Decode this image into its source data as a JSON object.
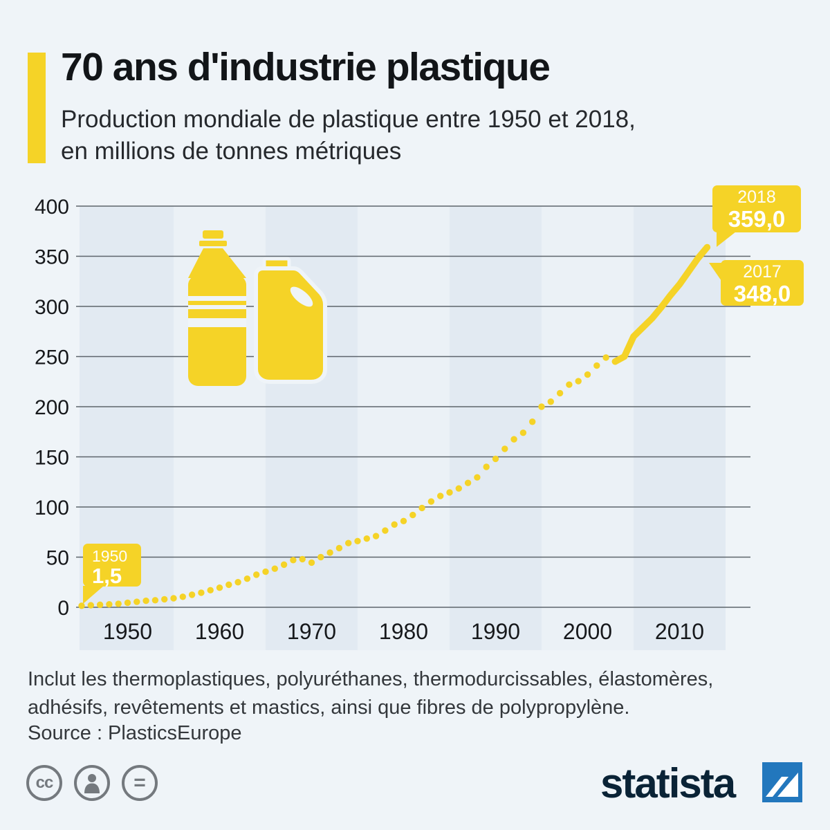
{
  "page": {
    "background": "#EFF4F8",
    "accent": "#F5D327",
    "logo_blue": "#2277BD"
  },
  "header": {
    "title": "70 ans d'industrie plastique",
    "subtitle_line1": "Production mondiale de plastique entre 1950 et 2018,",
    "subtitle_line2": "en millions de tonnes métriques"
  },
  "chart_data": {
    "type": "line",
    "title": "70 ans d'industrie plastique",
    "subtitle": "Production mondiale de plastique entre 1950 et 2018, en millions de tonnes métriques",
    "unit": "millions de tonnes métriques",
    "xlabel": "",
    "ylabel": "",
    "ylim": [
      0,
      400
    ],
    "yticks": [
      0,
      50,
      100,
      150,
      200,
      250,
      300,
      350,
      400
    ],
    "xticks": [
      1950,
      1960,
      1970,
      1980,
      1990,
      2000,
      2010
    ],
    "grid": true,
    "style": {
      "dotted_through_year": 2008,
      "solid_from_year": 2008,
      "decade_bands": true
    },
    "years": [
      1950,
      1951,
      1952,
      1953,
      1954,
      1955,
      1956,
      1957,
      1958,
      1959,
      1960,
      1961,
      1962,
      1963,
      1964,
      1965,
      1966,
      1967,
      1968,
      1969,
      1970,
      1971,
      1972,
      1973,
      1974,
      1975,
      1976,
      1977,
      1978,
      1979,
      1980,
      1981,
      1982,
      1983,
      1984,
      1985,
      1986,
      1987,
      1988,
      1989,
      1990,
      1991,
      1992,
      1993,
      1994,
      1995,
      1996,
      1997,
      1998,
      1999,
      2000,
      2001,
      2002,
      2003,
      2004,
      2005,
      2006,
      2007,
      2008,
      2009,
      2010,
      2011,
      2012,
      2013,
      2014,
      2015,
      2016,
      2017,
      2018
    ],
    "values": [
      1.5,
      2,
      2.5,
      3,
      3.5,
      4.5,
      5.5,
      6.5,
      7,
      8,
      9,
      10.5,
      12.5,
      14.5,
      17,
      19.5,
      22.5,
      25,
      28.5,
      32.5,
      35.5,
      38.5,
      42.5,
      47,
      48,
      44.5,
      50,
      54.5,
      59,
      64,
      66,
      68.5,
      71,
      76.5,
      82.5,
      86,
      92,
      99,
      105.5,
      111,
      114.5,
      118.5,
      124,
      129.5,
      140,
      148,
      158,
      167.5,
      174,
      185,
      200,
      205,
      213.5,
      222,
      225.5,
      232,
      241,
      249,
      245,
      250,
      270,
      279,
      288,
      299,
      311,
      322,
      335,
      348,
      359
    ],
    "annotations": [
      {
        "year": "1950",
        "value": "1,5"
      },
      {
        "year": "2018",
        "value": "359,0"
      },
      {
        "year": "2017",
        "value": "348,0"
      }
    ]
  },
  "footer": {
    "note_line1": "Inclut les thermoplastiques, polyuréthanes, thermodurcissables, élastomères,",
    "note_line2": "adhésifs, revêtements et mastics, ainsi que fibres de polypropylène.",
    "source": "Source : PlasticsEurope"
  },
  "license": {
    "cc_label": "cc",
    "equals_label": "="
  },
  "branding": {
    "logo_text": "statista"
  }
}
